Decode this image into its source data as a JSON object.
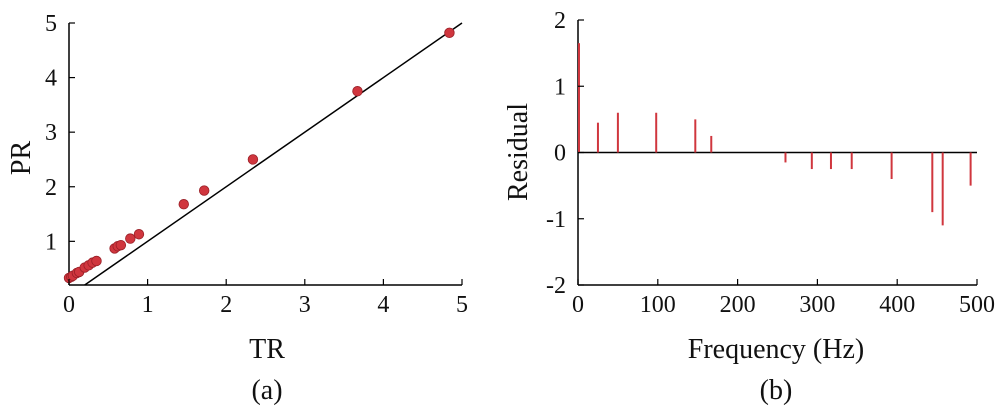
{
  "chart_data": [
    {
      "type": "scatter",
      "panel_label": "(a)",
      "xlabel": "TR",
      "ylabel": "PR",
      "xlim": [
        0,
        5
      ],
      "ylim": [
        0.2,
        5
      ],
      "x_ticks": [
        "0",
        "1",
        "2",
        "3",
        "4",
        "5"
      ],
      "y_ticks": [
        "1",
        "2",
        "3",
        "4",
        "5"
      ],
      "fit_line": {
        "type": "identity",
        "slope": 1,
        "intercept": 0,
        "color": "#000000"
      },
      "grid": false,
      "point_color": "#d0363e",
      "points": [
        {
          "x": 0.0,
          "y": 0.33
        },
        {
          "x": 0.03,
          "y": 0.35
        },
        {
          "x": 0.05,
          "y": 0.37
        },
        {
          "x": 0.1,
          "y": 0.42
        },
        {
          "x": 0.13,
          "y": 0.44
        },
        {
          "x": 0.2,
          "y": 0.52
        },
        {
          "x": 0.25,
          "y": 0.56
        },
        {
          "x": 0.3,
          "y": 0.61
        },
        {
          "x": 0.35,
          "y": 0.64
        },
        {
          "x": 0.58,
          "y": 0.87
        },
        {
          "x": 0.62,
          "y": 0.91
        },
        {
          "x": 0.66,
          "y": 0.93
        },
        {
          "x": 0.78,
          "y": 1.05
        },
        {
          "x": 0.89,
          "y": 1.13
        },
        {
          "x": 1.46,
          "y": 1.68
        },
        {
          "x": 1.72,
          "y": 1.93
        },
        {
          "x": 2.34,
          "y": 2.5
        },
        {
          "x": 3.67,
          "y": 3.75
        },
        {
          "x": 4.84,
          "y": 4.82
        }
      ]
    },
    {
      "type": "bar",
      "subtype": "stem",
      "panel_label": "(b)",
      "xlabel": "Frequency (Hz)",
      "ylabel": "Residual",
      "xlim": [
        0,
        500
      ],
      "ylim": [
        -2,
        2
      ],
      "x_ticks": [
        "0",
        "100",
        "200",
        "300",
        "400",
        "500"
      ],
      "y_ticks": [
        "-2",
        "-1",
        "0",
        "1",
        "2"
      ],
      "zero_line": true,
      "grid": false,
      "stem_color": "#d0363e",
      "x": [
        0,
        25,
        50,
        98,
        147,
        167,
        260,
        293,
        317,
        343,
        393,
        444,
        457,
        492
      ],
      "values": [
        1.65,
        0.45,
        0.6,
        0.6,
        0.5,
        0.25,
        -0.15,
        -0.25,
        -0.25,
        -0.25,
        -0.4,
        -0.9,
        -1.1,
        -0.5
      ]
    }
  ]
}
